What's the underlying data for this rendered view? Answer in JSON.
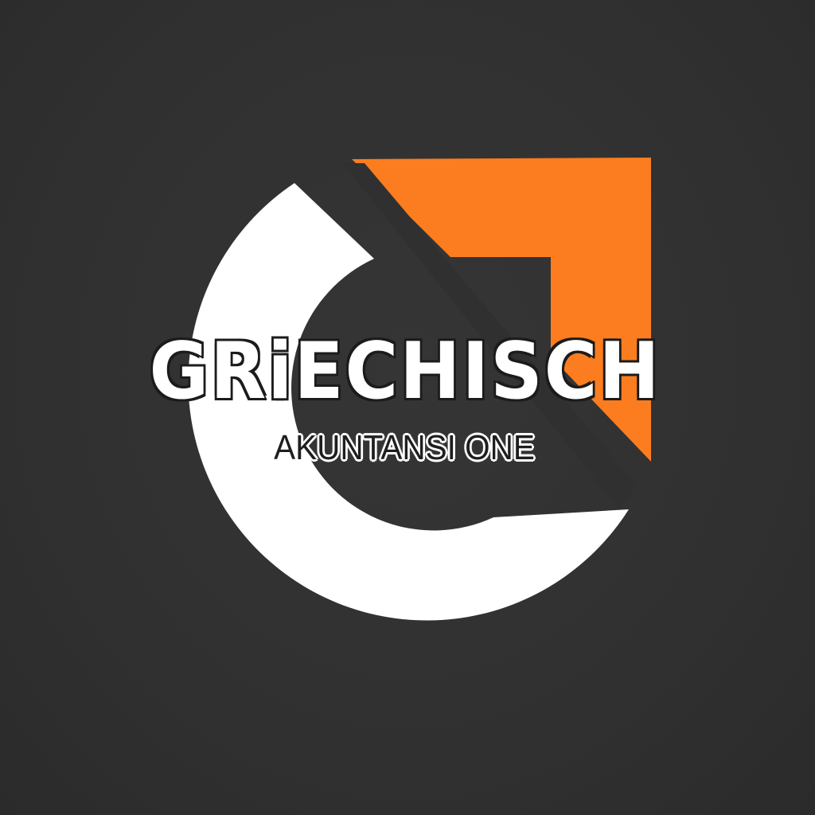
{
  "logo": {
    "brand_name": "GRiECHISCH",
    "tagline": "AKUNTANSI ONE",
    "colors": {
      "background": "#303030",
      "ring": "#ffffff",
      "accent": "#fb7d1f",
      "outline": "#1c1c1c"
    },
    "emblem_icon": "g-ring-arrow-icon"
  }
}
